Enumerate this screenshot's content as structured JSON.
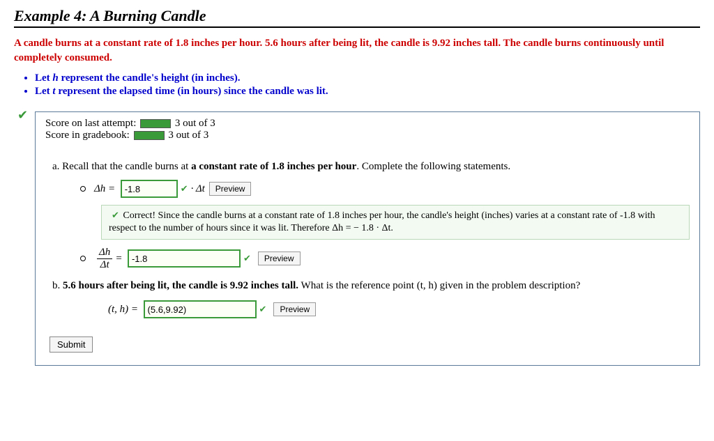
{
  "title": "Example 4: A Burning Candle",
  "problem": "A candle burns at a constant rate of 1.8 inches per hour. 5.6 hours after being lit, the candle is 9.92 inches tall. The candle burns continuously until completely consumed.",
  "vars": {
    "h_pre": "Let ",
    "h_var": "h",
    "h_post": " represent the candle's height (in inches).",
    "t_pre": "Let ",
    "t_var": "t",
    "t_post": " represent the elapsed time (in hours) since the candle was lit."
  },
  "score": {
    "attempt_label": "Score on last attempt:",
    "attempt_val": "3 out of 3",
    "gradebook_label": "Score in gradebook:",
    "gradebook_val": "3 out of 3"
  },
  "partA": {
    "intro_pre": "a. Recall that the candle burns at ",
    "intro_bold": "a constant rate of 1.8 inches per hour",
    "intro_post": ". Complete the following statements.",
    "dh_label": "Δh  =",
    "dh_value": "-1.8",
    "dt_label": "·  Δt",
    "feedback": "Correct! Since the candle burns at a constant rate of 1.8 inches per hour, the candle's height (inches) varies at a constant rate of -1.8 with respect to the number of hours since it was lit. Therefore Δh  =   − 1.8 · Δt.",
    "frac_num": "Δh",
    "frac_den": "Δt",
    "frac_eq": "=",
    "rate_value": "-1.8"
  },
  "partB": {
    "intro_pre": "b. ",
    "intro_bold": "5.6 hours after being lit, the candle is 9.92 inches tall.",
    "intro_post": " What is the reference point (t, h) given in the problem description?",
    "ref_label": "(t, h)  =",
    "ref_value": "(5.6,9.92)"
  },
  "buttons": {
    "preview": "Preview",
    "submit": "Submit"
  }
}
